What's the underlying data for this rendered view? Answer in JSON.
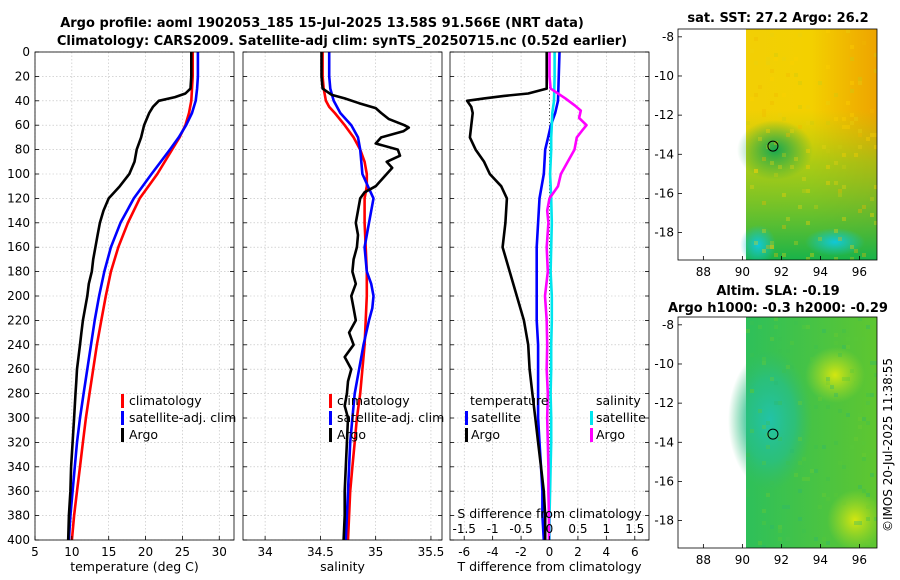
{
  "title": {
    "line1": "Argo profile: aoml 1902053_185 15-Jul-2025 13.58S 91.566E (NRT data)",
    "line2": "Climatology: CARS2009. Satellite-adj clim: synTS_20250715.nc (0.52d earlier)"
  },
  "copyright": "©IMOS 20-Jul-2025 11:38:55",
  "colors": {
    "climatology": "#ff0000",
    "satellite": "#0000ff",
    "argo": "#000000",
    "sal_satellite": "#00e5ee",
    "sal_argo": "#ff00ff"
  },
  "chart_data": [
    {
      "type": "line",
      "xlabel": "temperature (deg C)",
      "xlim": [
        5,
        32
      ],
      "xticks": [
        "5",
        "10",
        "15",
        "20",
        "25",
        "30"
      ],
      "ylim": [
        0,
        400
      ],
      "yticks": [
        "0",
        "20",
        "40",
        "60",
        "80",
        "100",
        "120",
        "140",
        "160",
        "180",
        "200",
        "220",
        "240",
        "260",
        "280",
        "300",
        "320",
        "340",
        "360",
        "380",
        "400"
      ],
      "legend": {
        "clim": "climatology",
        "sat": "satellite-adj. clim",
        "argo": "Argo"
      },
      "series": [
        {
          "name": "climatology",
          "color": "#ff0000",
          "depth": [
            0,
            10,
            20,
            30,
            40,
            50,
            60,
            70,
            80,
            100,
            120,
            140,
            160,
            180,
            200,
            220,
            240,
            260,
            280,
            300,
            320,
            340,
            360,
            380,
            400
          ],
          "values": [
            26.4,
            26.4,
            26.4,
            26.3,
            26.2,
            25.9,
            25.4,
            24.6,
            23.6,
            21.6,
            19.2,
            17.6,
            16.3,
            15.3,
            14.6,
            14.0,
            13.4,
            12.9,
            12.4,
            11.9,
            11.5,
            11.1,
            10.7,
            10.3,
            10.0
          ]
        },
        {
          "name": "satellite-adj. clim",
          "color": "#0000ff",
          "depth": [
            0,
            10,
            20,
            30,
            40,
            50,
            60,
            70,
            80,
            100,
            120,
            140,
            160,
            180,
            200,
            220,
            240,
            260,
            280,
            300,
            320,
            340,
            360,
            380,
            400
          ],
          "values": [
            27.1,
            27.1,
            27.1,
            27.0,
            26.8,
            26.3,
            25.5,
            24.5,
            23.3,
            20.8,
            18.4,
            16.6,
            15.3,
            14.4,
            13.7,
            13.1,
            12.6,
            12.1,
            11.6,
            11.1,
            10.7,
            10.4,
            10.1,
            9.8,
            9.6
          ]
        },
        {
          "name": "Argo",
          "color": "#000000",
          "depth": [
            0,
            10,
            20,
            30,
            34,
            37,
            40,
            45,
            50,
            60,
            70,
            80,
            90,
            100,
            110,
            120,
            130,
            140,
            150,
            160,
            170,
            180,
            190,
            200,
            210,
            220,
            230,
            240,
            250,
            260,
            270,
            280,
            290,
            300,
            320,
            340,
            360,
            380,
            400
          ],
          "values": [
            26.2,
            26.2,
            26.2,
            26.1,
            25.4,
            24.0,
            21.8,
            21.0,
            20.5,
            19.8,
            19.4,
            18.8,
            18.5,
            17.8,
            16.5,
            15.0,
            14.3,
            13.8,
            13.5,
            13.2,
            12.9,
            12.7,
            12.3,
            12.1,
            11.8,
            11.5,
            11.3,
            11.1,
            10.9,
            10.7,
            10.6,
            10.5,
            10.4,
            10.3,
            10.1,
            9.9,
            9.8,
            9.6,
            9.5
          ]
        }
      ]
    },
    {
      "type": "line",
      "xlabel": "salinity",
      "xlim": [
        33.8,
        35.6
      ],
      "xticks": [
        "34",
        "34.5",
        "35",
        "35.5"
      ],
      "ylim": [
        0,
        400
      ],
      "legend": {
        "clim": "climatology",
        "sat": "satellite-adj. clim",
        "argo": "Argo"
      },
      "series": [
        {
          "name": "climatology",
          "color": "#ff0000",
          "depth": [
            0,
            20,
            30,
            40,
            45,
            50,
            60,
            70,
            80,
            90,
            100,
            110,
            120,
            140,
            160,
            180,
            200,
            220,
            240,
            260,
            280,
            300,
            320,
            340,
            360,
            380,
            400
          ],
          "values": [
            34.52,
            34.52,
            34.53,
            34.55,
            34.58,
            34.63,
            34.72,
            34.8,
            34.86,
            34.9,
            34.92,
            34.92,
            34.9,
            34.9,
            34.91,
            34.92,
            34.92,
            34.91,
            34.9,
            34.88,
            34.86,
            34.83,
            34.81,
            34.79,
            34.77,
            34.76,
            34.75
          ]
        },
        {
          "name": "satellite-adj. clim",
          "color": "#0000ff",
          "depth": [
            0,
            20,
            30,
            40,
            50,
            60,
            70,
            80,
            90,
            100,
            110,
            120,
            140,
            160,
            180,
            190,
            200,
            210,
            220,
            240,
            260,
            280,
            300,
            320,
            340,
            360,
            380,
            400
          ],
          "values": [
            34.58,
            34.58,
            34.59,
            34.62,
            34.68,
            34.78,
            34.84,
            34.86,
            34.87,
            34.88,
            34.93,
            34.98,
            34.94,
            34.9,
            34.92,
            34.96,
            34.98,
            34.97,
            34.94,
            34.89,
            34.85,
            34.81,
            34.79,
            34.77,
            34.76,
            34.75,
            34.74,
            34.73
          ]
        },
        {
          "name": "Argo",
          "color": "#000000",
          "depth": [
            0,
            20,
            30,
            35,
            38,
            42,
            46,
            50,
            55,
            60,
            62,
            65,
            70,
            75,
            80,
            85,
            90,
            95,
            100,
            105,
            110,
            115,
            120,
            130,
            140,
            150,
            160,
            170,
            180,
            190,
            200,
            210,
            220,
            230,
            240,
            250,
            260,
            270,
            280,
            290,
            300,
            320,
            340,
            360,
            380,
            400
          ],
          "values": [
            34.51,
            34.51,
            34.52,
            34.6,
            34.72,
            34.85,
            35.0,
            35.05,
            35.12,
            35.26,
            35.3,
            35.25,
            35.05,
            35.0,
            35.2,
            35.22,
            35.1,
            35.15,
            35.1,
            35.05,
            35.0,
            34.9,
            34.86,
            34.84,
            34.82,
            34.84,
            34.83,
            34.8,
            34.79,
            34.82,
            34.78,
            34.8,
            34.82,
            34.76,
            34.8,
            34.72,
            34.78,
            34.75,
            34.74,
            34.72,
            34.75,
            34.74,
            34.73,
            34.72,
            34.72,
            34.71
          ]
        }
      ]
    },
    {
      "type": "line",
      "xlabel": "T difference from climatology",
      "xlabel2": "S difference from climatology",
      "xlim": [
        -7,
        7
      ],
      "xticks": [
        "-6",
        "-4",
        "-2",
        "0",
        "2",
        "4",
        "6"
      ],
      "xlim2": [
        -1.75,
        1.75
      ],
      "xticks2": [
        "-1.5",
        "-1",
        "-0.5",
        "0",
        "0.5",
        "1",
        "1.5"
      ],
      "ylim": [
        0,
        400
      ],
      "legend": {
        "temp_title": "temperature",
        "sal_title": "salinity",
        "sat": "satellite",
        "argo": "Argo"
      },
      "series": [
        {
          "name": "T satellite",
          "color": "#0000ff",
          "depth": [
            0,
            40,
            50,
            60,
            70,
            80,
            100,
            120,
            140,
            160,
            180,
            200,
            220,
            240,
            260,
            280,
            300,
            320,
            340,
            360,
            380,
            400
          ],
          "values": [
            0.7,
            0.6,
            0.4,
            0.1,
            -0.1,
            -0.3,
            -0.4,
            -0.7,
            -0.8,
            -0.9,
            -0.9,
            -0.9,
            -0.9,
            -0.8,
            -0.8,
            -0.8,
            -0.8,
            -0.7,
            -0.6,
            -0.5,
            -0.5,
            -0.4
          ]
        },
        {
          "name": "T Argo",
          "color": "#000000",
          "depth": [
            0,
            30,
            34,
            36,
            38,
            40,
            45,
            50,
            60,
            70,
            80,
            90,
            100,
            110,
            120,
            140,
            160,
            180,
            200,
            220,
            240,
            260,
            280,
            300,
            320,
            340,
            360,
            380,
            400
          ],
          "values": [
            -0.2,
            -0.2,
            -1.5,
            -3.2,
            -4.6,
            -5.8,
            -5.5,
            -5.4,
            -5.5,
            -5.6,
            -5.2,
            -4.6,
            -4.2,
            -3.4,
            -3.0,
            -3.1,
            -3.3,
            -2.8,
            -2.3,
            -1.8,
            -1.5,
            -1.4,
            -1.2,
            -1.0,
            -0.8,
            -0.6,
            -0.4,
            -0.3,
            -0.3
          ]
        },
        {
          "name": "S satellite",
          "color": "#00e5ee",
          "depth": [
            0,
            20,
            40,
            50,
            60,
            70,
            80,
            100,
            120,
            140,
            160,
            180,
            200,
            220,
            240,
            260,
            280,
            300,
            320,
            340,
            360,
            380,
            400
          ],
          "values": [
            0.09,
            0.09,
            0.08,
            0.05,
            0.04,
            0.03,
            0.03,
            0.01,
            0.03,
            0.04,
            0.03,
            0.02,
            0.04,
            0.04,
            0.03,
            0.03,
            0.02,
            0.03,
            0.03,
            0.02,
            0.01,
            0.0,
            0.0
          ]
        },
        {
          "name": "S Argo",
          "color": "#ff00ff",
          "depth": [
            0,
            20,
            30,
            38,
            44,
            48,
            54,
            60,
            64,
            70,
            80,
            90,
            100,
            110,
            120,
            130,
            140,
            160,
            180,
            200,
            220,
            240,
            260,
            280,
            300,
            320,
            340,
            360,
            380,
            400
          ],
          "values": [
            0.0,
            0.0,
            0.02,
            0.28,
            0.45,
            0.55,
            0.52,
            0.65,
            0.58,
            0.48,
            0.44,
            0.32,
            0.2,
            0.15,
            0.0,
            -0.04,
            -0.02,
            -0.05,
            -0.03,
            -0.08,
            -0.05,
            -0.04,
            -0.05,
            -0.03,
            -0.04,
            -0.03,
            -0.02,
            -0.02,
            -0.01,
            -0.01
          ]
        }
      ]
    },
    {
      "type": "heatmap",
      "title": "sat. SST: 27.2  Argo: 26.2",
      "xticks": [
        "88",
        "90",
        "92",
        "94",
        "96"
      ],
      "yticks": [
        "-8",
        "-10",
        "-12",
        "-14",
        "-16",
        "-18"
      ],
      "xlim": [
        86.7,
        96.9
      ],
      "ylim": [
        -19.4,
        -7.6
      ],
      "marker": {
        "lon": 91.566,
        "lat": -13.58
      }
    },
    {
      "type": "heatmap",
      "title": "Altim. SLA: -0.19",
      "subtitle": "Argo h1000: -0.3  h2000: -0.29",
      "xticks": [
        "88",
        "90",
        "92",
        "94",
        "96"
      ],
      "yticks": [
        "-8",
        "-10",
        "-12",
        "-14",
        "-16",
        "-18"
      ],
      "xlim": [
        86.7,
        96.9
      ],
      "ylim": [
        -19.4,
        -7.6
      ],
      "marker": {
        "lon": 91.566,
        "lat": -13.58
      }
    }
  ]
}
